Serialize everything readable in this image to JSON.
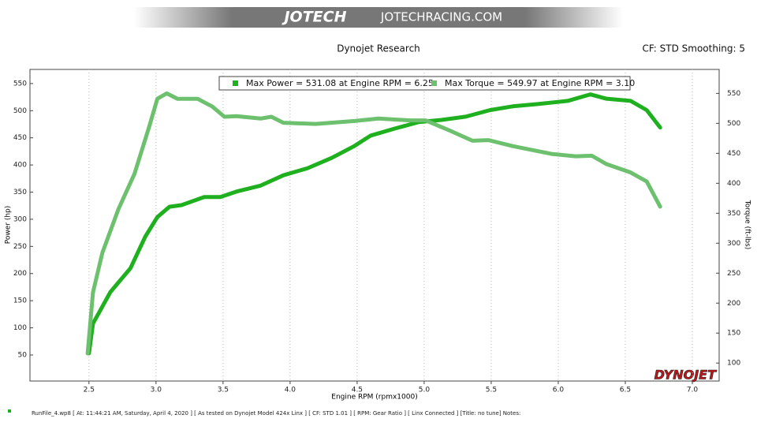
{
  "chart_data": {
    "type": "line",
    "banner": [
      "JOTECH",
      "JOTECHRACING.COM"
    ],
    "title": "Dynojet Research",
    "subtitle": "CF: STD Smoothing: 5",
    "x_label": "Engine RPM (rpmx1000)",
    "y_label": "Power (hp)",
    "y2_label": "Torque (ft-lbs)",
    "logo": "DYNOJET",
    "footer": "RunFile_4.wp8 [ At: 11:44:21 AM, Saturday, April 4, 2020 ] [ As tested on Dynojet Model 424x Linx ] [ CF: STD 1.01 ] [ RPM: Gear Ratio ] [ Linx Connected ] [Title: no tune]  Notes:",
    "grid": true,
    "xlim": [
      2.06,
      7.2
    ],
    "xticks": [
      2.5,
      {
        "value": 3,
        "label": "3.0"
      },
      3.5,
      {
        "value": 4,
        "label": "4.0"
      },
      4.5,
      {
        "value": 5,
        "label": "5.0"
      },
      5.5,
      {
        "value": 6,
        "label": "6.0"
      },
      6.5,
      {
        "value": 7,
        "label": "7.0"
      }
    ],
    "ylim": [
      2,
      576
    ],
    "yticks": [
      50,
      100,
      150,
      200,
      250,
      300,
      350,
      400,
      450,
      500,
      550
    ],
    "y2lim": [
      70,
      590
    ],
    "y2ticks": [
      100,
      150,
      200,
      250,
      300,
      350,
      400,
      450,
      500,
      550
    ],
    "series": [
      {
        "name": "Max Power = 531.08 at Engine RPM = 6.25",
        "color": "#1fb01f",
        "axis": "y",
        "x": [
          2.5,
          2.53,
          2.66,
          2.81,
          2.92,
          3.01,
          3.1,
          3.19,
          3.36,
          3.48,
          3.6,
          3.78,
          3.95,
          4.13,
          4.31,
          4.48,
          4.6,
          4.78,
          4.96,
          5.13,
          5.31,
          5.49,
          5.66,
          5.84,
          6.07,
          6.24,
          6.36,
          6.54,
          6.66,
          6.76
        ],
        "values": [
          53,
          108,
          166,
          210,
          268,
          304,
          323,
          326,
          341,
          341,
          351,
          362,
          381,
          394,
          413,
          435,
          454,
          467,
          479,
          483,
          489,
          501,
          508,
          512,
          518,
          530,
          522,
          518,
          501,
          469
        ]
      },
      {
        "name": "Max Torque = 549.97 at Engine RPM = 3.10",
        "color": "#6dc06d",
        "axis": "y2",
        "x": [
          2.49,
          2.53,
          2.6,
          2.72,
          2.84,
          2.95,
          3.01,
          3.08,
          3.16,
          3.31,
          3.42,
          3.51,
          3.6,
          3.78,
          3.86,
          3.95,
          4.19,
          4.48,
          4.66,
          4.89,
          5.01,
          5.19,
          5.36,
          5.48,
          5.66,
          5.95,
          6.13,
          6.25,
          6.36,
          6.54,
          6.66,
          6.76
        ],
        "values": [
          116,
          218,
          284,
          357,
          416,
          495,
          541,
          550,
          541,
          541,
          528,
          511,
          512,
          508,
          511,
          501,
          499,
          504,
          508,
          505,
          505,
          488,
          471,
          472,
          462,
          449,
          445,
          446,
          432,
          418,
          403,
          361
        ]
      }
    ]
  }
}
